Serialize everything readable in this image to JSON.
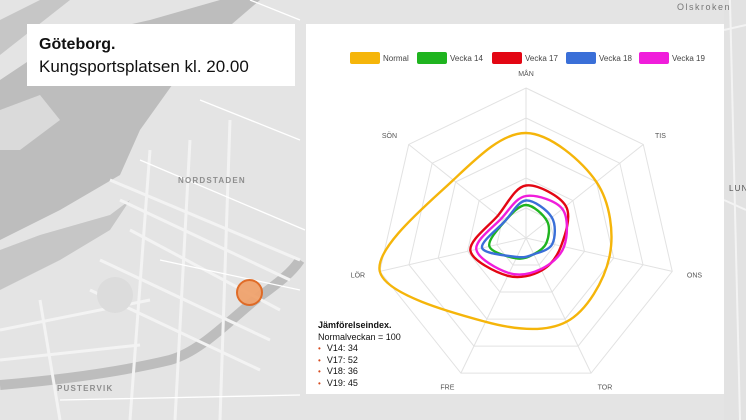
{
  "map": {
    "labels": {
      "nordstaden": "NORDSTADEN",
      "pustervik": "PUSTERVIK",
      "olskroken": "Olskroken",
      "lun": "LUN"
    },
    "location_marker_color": "#e0661e"
  },
  "title": {
    "city": "Göteborg.",
    "subtitle": "Kungsportsplatsen kl. 20.00"
  },
  "chart_data": {
    "type": "radar",
    "axes": [
      "MÅN",
      "TIS",
      "ONS",
      "TOR",
      "FRE",
      "LÖR",
      "SÖN"
    ],
    "rlim": [
      0,
      100
    ],
    "grid": true,
    "legend_position": "top",
    "series": [
      {
        "name": "Normal",
        "color": "#f5b50a",
        "values": [
          70,
          60,
          57,
          62,
          62,
          100,
          62
        ]
      },
      {
        "name": "Vecka 14",
        "color": "#1fb41f",
        "values": [
          22,
          18,
          14,
          12,
          15,
          25,
          18
        ]
      },
      {
        "name": "Vecka 17",
        "color": "#e30613",
        "values": [
          35,
          34,
          24,
          24,
          28,
          38,
          24
        ]
      },
      {
        "name": "Vecka 18",
        "color": "#3a6fd8",
        "values": [
          25,
          22,
          18,
          12,
          14,
          30,
          18
        ]
      },
      {
        "name": "Vecka 19",
        "color": "#f01ddb",
        "values": [
          28,
          31,
          26,
          23,
          26,
          34,
          21
        ]
      }
    ]
  },
  "index_box": {
    "title": "Jämförelseindex.",
    "subtitle": "Normalveckan = 100",
    "items": [
      "V14: 34",
      "V17: 52",
      "V18: 36",
      "V19: 45"
    ]
  }
}
